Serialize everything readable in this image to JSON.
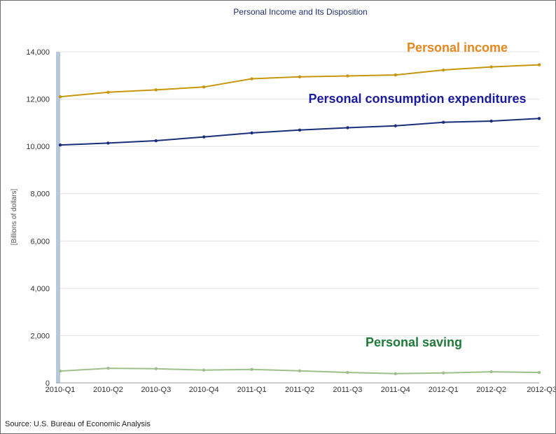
{
  "chart_data": {
    "type": "line",
    "title": "Personal Income and Its Disposition",
    "xlabel": "",
    "ylabel": "[Billions of dollars]",
    "source": "Source: U.S. Bureau of Economic Analysis",
    "categories": [
      "2010-Q1",
      "2010-Q2",
      "2010-Q3",
      "2010-Q4",
      "2011-Q1",
      "2011-Q2",
      "2011-Q3",
      "2011-Q4",
      "2012-Q1",
      "2012-Q2",
      "2012-Q3"
    ],
    "ylim": [
      0,
      14000
    ],
    "yticks": [
      0,
      2000,
      4000,
      6000,
      8000,
      10000,
      12000,
      14000
    ],
    "ytick_labels": [
      "0",
      "2,000",
      "4,000",
      "6,000",
      "8,000",
      "10,000",
      "12,000",
      "14,000"
    ],
    "grid": true,
    "series": [
      {
        "name": "Personal income",
        "color": "#c8960c",
        "label_color": "#e8871e",
        "values": [
          12100,
          12290,
          12390,
          12510,
          12860,
          12940,
          12980,
          13020,
          13230,
          13360,
          13450
        ]
      },
      {
        "name": "Personal consumption expenditures",
        "color": "#1a2f7a",
        "label_color": "#1a1aa0",
        "values": [
          10060,
          10140,
          10240,
          10400,
          10570,
          10690,
          10790,
          10870,
          11020,
          11070,
          11180
        ]
      },
      {
        "name": "Personal saving",
        "color": "#9dc08b",
        "label_color": "#1f7a3a",
        "values": [
          500,
          620,
          600,
          540,
          570,
          510,
          440,
          390,
          420,
          470,
          440
        ]
      }
    ]
  }
}
